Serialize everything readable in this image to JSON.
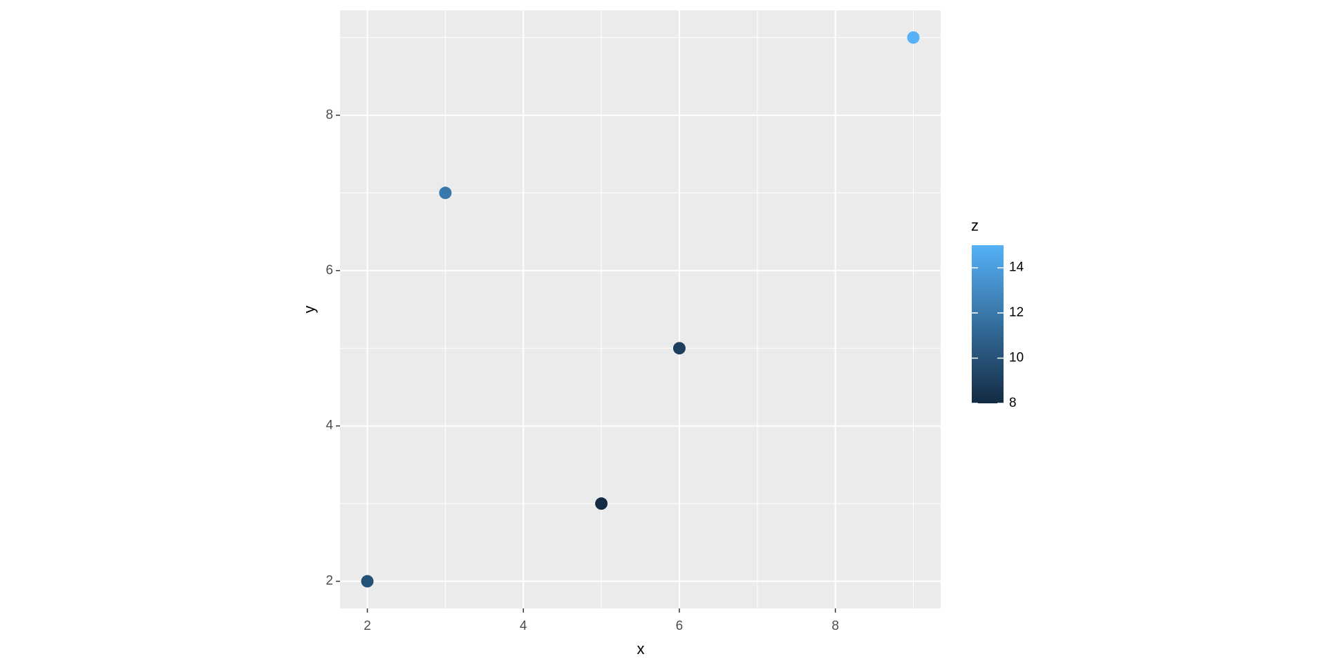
{
  "chart_data": {
    "type": "scatter",
    "x": [
      2,
      3,
      5,
      6,
      9
    ],
    "y": [
      2,
      7,
      3,
      5,
      9
    ],
    "z": [
      10,
      12,
      8,
      9,
      15
    ],
    "xlabel": "x",
    "ylabel": "y",
    "xlim": [
      1.65,
      9.35
    ],
    "ylim": [
      1.65,
      9.35
    ],
    "xticks": [
      2,
      4,
      6,
      8
    ],
    "yticks": [
      2,
      4,
      6,
      8
    ],
    "grid": true,
    "legend": {
      "title": "z",
      "position": "right",
      "zlim": [
        8,
        15
      ],
      "zticks": [
        8,
        10,
        12,
        14
      ]
    },
    "colorscale": [
      "#132B43",
      "#56B1F7"
    ]
  }
}
